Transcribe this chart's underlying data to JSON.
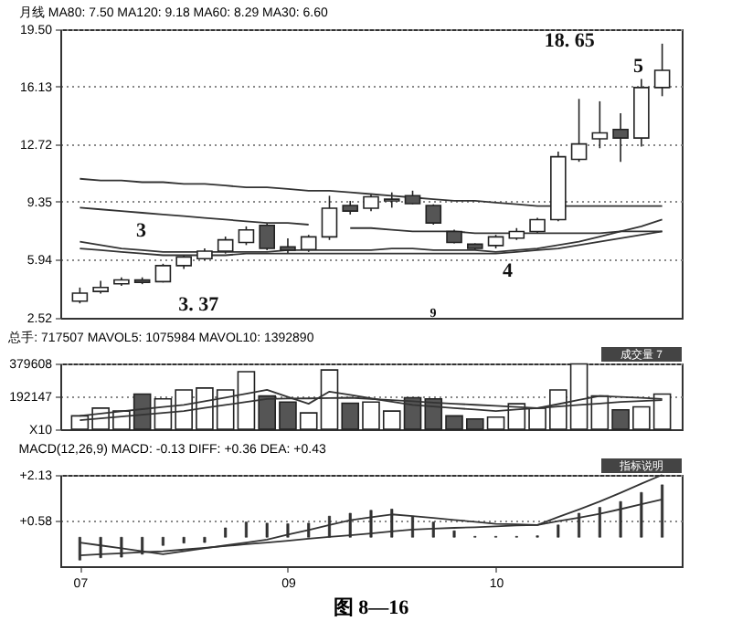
{
  "chart_data": [
    {
      "type": "candlestick",
      "title": "月线 MA80: 7.50 MA120: 9.18 MA60: 8.29 MA30: 6.60",
      "categories": [
        "07",
        null,
        null,
        null,
        null,
        null,
        null,
        null,
        null,
        null,
        "09",
        null,
        null,
        null,
        null,
        null,
        null,
        null,
        null,
        null,
        "10",
        null,
        null,
        null,
        null,
        null,
        null,
        null,
        null
      ],
      "ohlc": [
        [
          3.5,
          4.3,
          3.37,
          3.97
        ],
        [
          4.07,
          4.7,
          3.95,
          4.31
        ],
        [
          4.52,
          4.9,
          4.4,
          4.75
        ],
        [
          4.75,
          4.9,
          4.5,
          4.6
        ],
        [
          4.65,
          5.7,
          4.6,
          5.59
        ],
        [
          5.59,
          6.2,
          5.4,
          6.1
        ],
        [
          6.0,
          6.6,
          5.9,
          6.44
        ],
        [
          6.44,
          7.3,
          6.3,
          7.11
        ],
        [
          6.95,
          7.9,
          6.8,
          7.69
        ],
        [
          7.96,
          8.1,
          6.5,
          6.6
        ],
        [
          6.7,
          7.2,
          6.3,
          6.5
        ],
        [
          6.54,
          7.4,
          6.4,
          7.28
        ],
        [
          7.28,
          9.7,
          7.1,
          8.97
        ],
        [
          9.13,
          9.4,
          8.6,
          8.8
        ],
        [
          8.97,
          9.8,
          8.8,
          9.64
        ],
        [
          9.4,
          9.9,
          9.0,
          9.5
        ],
        [
          9.71,
          10.0,
          9.2,
          9.24
        ],
        [
          9.13,
          9.2,
          8.0,
          8.1
        ],
        [
          7.6,
          7.7,
          6.9,
          6.95
        ],
        [
          6.85,
          6.9,
          6.5,
          6.6
        ],
        [
          6.77,
          7.4,
          6.6,
          7.28
        ],
        [
          7.21,
          7.8,
          7.1,
          7.6
        ],
        [
          7.6,
          8.4,
          7.5,
          8.3
        ],
        [
          8.3,
          12.3,
          8.2,
          12.0
        ],
        [
          11.84,
          15.4,
          11.7,
          12.75
        ],
        [
          13.05,
          15.26,
          12.5,
          13.4
        ],
        [
          13.6,
          14.55,
          11.7,
          13.1
        ],
        [
          13.1,
          16.57,
          12.6,
          16.07
        ],
        [
          16.07,
          18.65,
          15.56,
          17.08
        ]
      ],
      "colors": [
        "#ffffff",
        "#ffffff",
        "#ffffff",
        "#555555",
        "#ffffff",
        "#ffffff",
        "#ffffff",
        "#ffffff",
        "#ffffff",
        "#555555",
        "#555555",
        "#ffffff",
        "#ffffff",
        "#555555",
        "#ffffff",
        "#ffffff",
        "#555555",
        "#555555",
        "#555555",
        "#555555",
        "#ffffff",
        "#ffffff",
        "#ffffff",
        "#ffffff",
        "#ffffff",
        "#ffffff",
        "#555555",
        "#ffffff",
        "#ffffff"
      ],
      "series": [
        {
          "type": "line",
          "color": "#333333",
          "values": [
            10.7,
            10.6,
            10.6,
            10.5,
            10.5,
            10.4,
            10.4,
            10.3,
            10.2,
            10.2,
            10.1,
            10.0,
            10.0,
            9.9,
            9.8,
            9.7,
            9.6,
            9.5,
            9.4,
            9.4,
            9.3,
            9.2,
            9.1,
            9.1,
            9.1,
            9.1,
            9.1,
            9.1,
            9.1
          ]
        },
        {
          "type": "line",
          "color": "#333333",
          "values": [
            9.0,
            8.9,
            8.8,
            8.7,
            8.6,
            8.5,
            8.4,
            8.3,
            8.2,
            8.1,
            8.1,
            8.0,
            null,
            7.8,
            7.8,
            7.7,
            7.6,
            7.6,
            7.6,
            7.5,
            7.5,
            7.5,
            7.5,
            7.5,
            7.5,
            7.5,
            7.6,
            7.6,
            7.6
          ]
        },
        {
          "type": "line",
          "color": "#333333",
          "values": [
            7.0,
            6.8,
            6.6,
            6.5,
            6.4,
            6.4,
            6.4,
            6.4,
            6.4,
            6.4,
            6.5,
            6.5,
            6.5,
            6.5,
            6.5,
            6.6,
            6.6,
            6.5,
            6.5,
            6.5,
            6.4,
            6.5,
            6.6,
            6.8,
            7.0,
            7.3,
            7.6,
            7.9,
            8.3
          ]
        },
        {
          "type": "line",
          "color": "#333333",
          "values": [
            6.6,
            6.5,
            6.4,
            6.3,
            6.2,
            6.2,
            6.2,
            6.2,
            6.3,
            6.3,
            6.3,
            6.3,
            6.3,
            6.3,
            6.3,
            6.3,
            6.3,
            6.3,
            6.3,
            6.3,
            6.3,
            6.4,
            6.5,
            6.6,
            6.8,
            7.0,
            7.2,
            7.4,
            7.6
          ]
        }
      ],
      "ylim": [
        2.52,
        19.5
      ],
      "yticks": [
        2.52,
        5.94,
        9.35,
        12.72,
        16.13,
        {
          "value": 19.5,
          "label": "19.50"
        }
      ],
      "grid": "y",
      "tick_labels": "y",
      "annotations": [
        "18. 65",
        "5",
        "3",
        "4",
        "3. 37",
        "9"
      ]
    },
    {
      "type": "bar",
      "title": "总手: 717507 MAVOL5: 1075984 MAVOL10: 1392890",
      "categories": [
        "07",
        null,
        null,
        null,
        null,
        null,
        null,
        null,
        null,
        null,
        "09",
        null,
        null,
        null,
        null,
        null,
        null,
        null,
        null,
        null,
        "10",
        null,
        null,
        null,
        null,
        null,
        null,
        null,
        null
      ],
      "values": [
        77000,
        122000,
        105000,
        203000,
        175000,
        227000,
        238000,
        227000,
        332000,
        192000,
        157000,
        94000,
        342000,
        150000,
        157000,
        105000,
        182000,
        175000,
        77000,
        59000,
        70000,
        147000,
        122000,
        227000,
        377000,
        192000,
        112000,
        129000,
        203000
      ],
      "colors": [
        "#ffffff",
        "#ffffff",
        "#ffffff",
        "#555555",
        "#ffffff",
        "#ffffff",
        "#ffffff",
        "#ffffff",
        "#ffffff",
        "#555555",
        "#555555",
        "#ffffff",
        "#ffffff",
        "#555555",
        "#ffffff",
        "#ffffff",
        "#555555",
        "#555555",
        "#555555",
        "#555555",
        "#ffffff",
        "#ffffff",
        "#ffffff",
        "#ffffff",
        "#ffffff",
        "#ffffff",
        "#555555",
        "#ffffff",
        "#ffffff"
      ],
      "series": [
        {
          "type": "line",
          "color": "#333333",
          "values": [
            77000,
            90000,
            103000,
            116000,
            128000,
            140000,
            162000,
            183000,
            205000,
            227000,
            187000,
            147000,
            217000,
            198000,
            178000,
            159000,
            140000,
            131000,
            122000,
            114000,
            105000,
            114000,
            122000,
            145000,
            169000,
            192000,
            186000,
            181000,
            175000
          ]
        },
        {
          "type": "line",
          "color": "#333333",
          "values": [
            52000,
            63000,
            73000,
            84000,
            94000,
            105000,
            123000,
            140000,
            158000,
            175000,
            177000,
            178000,
            180000,
            182000,
            175000,
            168000,
            161000,
            154000,
            147000,
            141000,
            135000,
            128000,
            122000,
            131000,
            140000,
            148000,
            157000,
            163000,
            168000
          ]
        }
      ],
      "ylim": [
        0,
        379608
      ],
      "yticks": [
        {
          "value": 0,
          "label": "X10"
        },
        192147,
        379608
      ],
      "grid": "y",
      "tick_labels": "y",
      "annotations": [
        "成交量 7"
      ]
    },
    {
      "type": "bar",
      "title": "MACD(12,26,9) MACD: -0.13 DIFF: +0.36 DEA: +0.43",
      "categories": [
        "07",
        null,
        null,
        null,
        null,
        null,
        null,
        null,
        null,
        null,
        "09",
        null,
        null,
        null,
        null,
        null,
        null,
        null,
        null,
        null,
        "10",
        null,
        null,
        null,
        null,
        null,
        null,
        null,
        null
      ],
      "values": [
        -0.78,
        -0.7,
        -0.68,
        -0.58,
        -0.28,
        -0.2,
        -0.18,
        0.32,
        0.52,
        0.48,
        0.46,
        0.48,
        0.72,
        0.82,
        0.92,
        0.96,
        0.72,
        0.52,
        0.22,
        0.03,
        0.03,
        0.03,
        0.05,
        0.42,
        0.82,
        1.02,
        1.22,
        1.53,
        1.79
      ],
      "color": "#333333",
      "series": [
        {
          "type": "line",
          "color": "#333333",
          "values": [
            -0.18,
            -0.28,
            -0.38,
            -0.48,
            -0.58,
            -0.48,
            -0.38,
            -0.28,
            -0.18,
            -0.08,
            0.09,
            0.25,
            0.42,
            0.58,
            0.68,
            0.78,
            0.72,
            0.66,
            0.59,
            0.53,
            0.46,
            0.44,
            0.42,
            0.69,
            0.95,
            1.22,
            1.52,
            1.83,
            2.13
          ]
        },
        {
          "type": "line",
          "color": "#333333",
          "values": [
            -0.62,
            -0.58,
            -0.55,
            -0.51,
            -0.48,
            -0.42,
            -0.36,
            -0.3,
            -0.24,
            -0.18,
            -0.12,
            -0.05,
            0.01,
            0.07,
            0.13,
            0.2,
            0.26,
            0.29,
            0.32,
            0.34,
            0.37,
            0.4,
            0.42,
            0.55,
            0.67,
            0.8,
            0.96,
            1.13,
            1.29
          ]
        }
      ],
      "ylim": [
        -0.99,
        2.13
      ],
      "yticks": [
        {
          "value": 2.13,
          "label": "+2.13"
        },
        {
          "value": 0.58,
          "label": "+0.58"
        }
      ],
      "grid": "y",
      "annotations": [
        "指标说明"
      ]
    },
    {
      "type": "other",
      "title": "图 8—16"
    }
  ]
}
